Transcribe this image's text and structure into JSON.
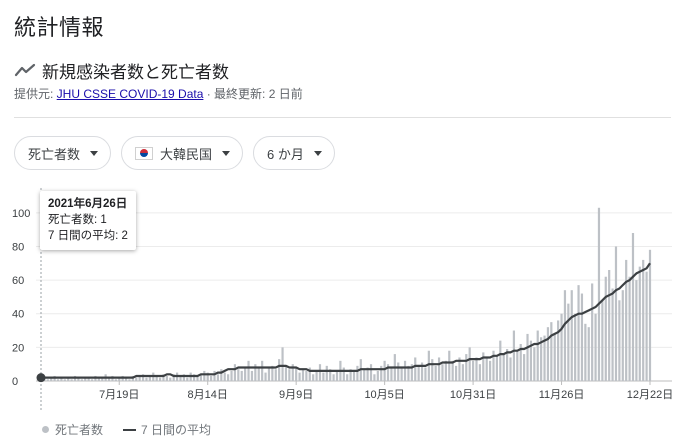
{
  "page": {
    "title": "統計情報",
    "subtitle": "新規感染者数と死亡者数",
    "source_prefix": "提供元: ",
    "source_link": "JHU CSSE COVID-19 Data",
    "updated": " · 最終更新: 2 日前"
  },
  "filters": {
    "metric": "死亡者数",
    "country": "大韓民国",
    "range": "6 か月"
  },
  "tooltip": {
    "date": "2021年6月26日",
    "line1": "死亡者数: 1",
    "line2": "7 日間の平均: 2"
  },
  "legend": {
    "bars": "死亡者数",
    "line": "7 日間の平均"
  },
  "colors": {
    "bar": "#bdc1c6",
    "avg_line": "#3c4043",
    "link": "#1a0dab"
  },
  "icons": {
    "trend": "trend-line-icon",
    "flag": "south-korea-flag-icon"
  },
  "chart_data": {
    "type": "bar",
    "ylim": [
      0,
      110
    ],
    "y_ticks": [
      0,
      20,
      40,
      60,
      80,
      100
    ],
    "x_tick_labels": [
      "7月19日",
      "8月14日",
      "9月9日",
      "10月5日",
      "10月31日",
      "11月26日",
      "12月22日"
    ],
    "x_tick_day_index": [
      23,
      49,
      75,
      101,
      127,
      153,
      179
    ],
    "day_count": 180,
    "highlight_index": 0,
    "series": [
      {
        "name": "死亡者数",
        "values": [
          1,
          2,
          1,
          2,
          3,
          1,
          2,
          1,
          2,
          1,
          3,
          2,
          1,
          2,
          2,
          1,
          3,
          2,
          2,
          4,
          2,
          3,
          1,
          2,
          3,
          2,
          1,
          3,
          2,
          3,
          4,
          2,
          3,
          5,
          3,
          2,
          4,
          3,
          2,
          4,
          5,
          3,
          4,
          2,
          5,
          4,
          3,
          4,
          6,
          5,
          3,
          6,
          4,
          7,
          5,
          4,
          6,
          10,
          7,
          6,
          8,
          12,
          6,
          10,
          8,
          12,
          5,
          8,
          9,
          7,
          13,
          20,
          9,
          7,
          10,
          8,
          5,
          7,
          6,
          8,
          4,
          6,
          10,
          5,
          9,
          7,
          4,
          6,
          12,
          8,
          4,
          7,
          6,
          9,
          13,
          7,
          8,
          10,
          4,
          6,
          9,
          12,
          10,
          8,
          16,
          11,
          8,
          12,
          9,
          10,
          14,
          9,
          11,
          8,
          18,
          13,
          9,
          14,
          10,
          12,
          18,
          12,
          9,
          14,
          10,
          16,
          20,
          12,
          14,
          10,
          17,
          14,
          12,
          18,
          15,
          24,
          16,
          19,
          14,
          30,
          18,
          22,
          16,
          28,
          24,
          20,
          30,
          26,
          27,
          32,
          35,
          28,
          36,
          40,
          54,
          46,
          54,
          40,
          57,
          52,
          34,
          32,
          58,
          40,
          103,
          48,
          62,
          66,
          55,
          80,
          48,
          54,
          72,
          62,
          88,
          60,
          68,
          72,
          65,
          78
        ]
      },
      {
        "name": "7 日間の平均",
        "values": [
          2,
          2,
          2,
          2,
          2,
          2,
          2,
          2,
          2,
          2,
          2,
          2,
          2,
          2,
          2,
          2,
          2,
          2,
          2,
          2,
          2,
          2,
          2,
          2,
          2,
          2,
          2,
          2,
          3,
          3,
          3,
          3,
          3,
          3,
          3,
          3,
          3,
          4,
          4,
          3,
          3,
          3,
          3,
          3,
          3,
          3,
          3,
          4,
          4,
          4,
          4,
          4,
          5,
          5,
          6,
          7,
          7,
          7,
          8,
          8,
          8,
          8,
          8,
          8,
          8,
          8,
          8,
          8,
          8,
          8,
          9,
          9,
          9,
          8,
          8,
          8,
          7,
          7,
          7,
          6,
          6,
          6,
          6,
          6,
          6,
          6,
          6,
          6,
          6,
          6,
          6,
          6,
          6,
          6,
          7,
          7,
          7,
          7,
          7,
          7,
          7,
          7,
          8,
          8,
          8,
          8,
          8,
          8,
          8,
          8,
          9,
          9,
          9,
          9,
          10,
          10,
          10,
          10,
          11,
          11,
          11,
          11,
          12,
          12,
          12,
          12,
          13,
          13,
          13,
          13,
          14,
          14,
          14,
          15,
          15,
          16,
          16,
          17,
          17,
          18,
          18,
          19,
          19,
          20,
          21,
          22,
          22,
          23,
          24,
          25,
          27,
          28,
          29,
          31,
          34,
          36,
          38,
          39,
          40,
          40,
          41,
          42,
          43,
          44,
          46,
          48,
          50,
          51,
          52,
          54,
          55,
          57,
          59,
          60,
          62,
          64,
          65,
          66,
          67,
          70
        ]
      }
    ]
  }
}
